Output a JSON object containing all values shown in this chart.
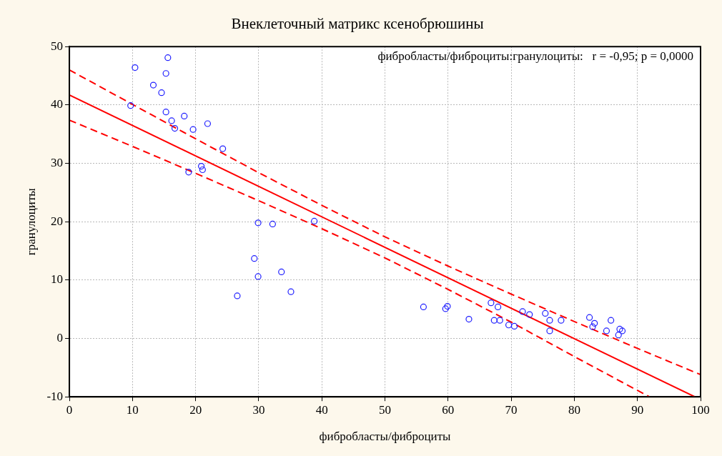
{
  "chart_data": {
    "type": "scatter",
    "title": "Внеклеточный матрикс ксенобрюшины",
    "xlabel": "фибробласты/фиброциты",
    "ylabel": "гранулоциты",
    "annotations": [
      "фибробласты/фиброциты:гранулоциты:   r = -0,95; p = 0,0000"
    ],
    "xlim": [
      0,
      100
    ],
    "xticks": [
      0,
      10,
      20,
      30,
      40,
      50,
      60,
      70,
      80,
      90,
      100
    ],
    "ylim": [
      -10,
      50
    ],
    "yticks": [
      -10,
      0,
      10,
      20,
      30,
      40,
      50
    ],
    "grid": true,
    "legend": false,
    "series": [
      {
        "type": "scatter",
        "marker": "circle",
        "color": "#1f1fff",
        "x": [
          10.4,
          15.6,
          15.3,
          13.3,
          14.6,
          9.7,
          15.3,
          18.2,
          16.2,
          21.9,
          16.7,
          19.6,
          24.3,
          20.9,
          21.1,
          18.9,
          29.9,
          32.2,
          38.8,
          29.3,
          33.6,
          29.9,
          35.1,
          26.6,
          56.1,
          59.9,
          59.6,
          63.3,
          66.8,
          67.9,
          67.3,
          68.2,
          69.6,
          70.5,
          71.8,
          72.9,
          75.4,
          76.1,
          76.1,
          77.9,
          82.4,
          83.2,
          82.9,
          85.8,
          85.1,
          87.2,
          87.6,
          87.0
        ],
        "values": [
          46.4,
          48.1,
          45.4,
          43.4,
          42.1,
          39.9,
          38.8,
          38.1,
          37.3,
          36.8,
          36.0,
          35.8,
          32.5,
          29.5,
          28.9,
          28.5,
          19.8,
          19.6,
          20.1,
          13.7,
          11.4,
          10.6,
          8.0,
          7.3,
          5.4,
          5.5,
          5.1,
          3.3,
          6.1,
          5.4,
          3.1,
          3.1,
          2.3,
          2.1,
          4.6,
          4.1,
          4.3,
          3.1,
          1.3,
          3.1,
          3.6,
          2.6,
          2.0,
          3.1,
          1.3,
          1.6,
          1.3,
          0.6
        ]
      },
      {
        "type": "line",
        "marker": "none",
        "line_style": "solid",
        "color": "#ff0000",
        "x": [
          0,
          99.1
        ],
        "values": [
          41.7,
          -10
        ]
      },
      {
        "type": "line",
        "marker": "none",
        "line_style": "dashed",
        "color": "#ff0000",
        "x": [
          0,
          10,
          20,
          30,
          40,
          50,
          60,
          70,
          80,
          90,
          100
        ],
        "values": [
          46.0,
          40.1,
          34.2,
          28.4,
          22.8,
          17.4,
          12.4,
          7.6,
          2.9,
          -1.7,
          -6.2
        ]
      },
      {
        "type": "line",
        "marker": "none",
        "line_style": "dashed",
        "color": "#ff0000",
        "x": [
          0,
          10,
          20,
          30,
          40,
          50,
          60,
          70,
          80,
          90,
          91.9
        ],
        "values": [
          37.4,
          32.9,
          28.3,
          23.6,
          18.8,
          13.8,
          8.4,
          2.8,
          -3.1,
          -8.9,
          -10
        ]
      }
    ]
  }
}
